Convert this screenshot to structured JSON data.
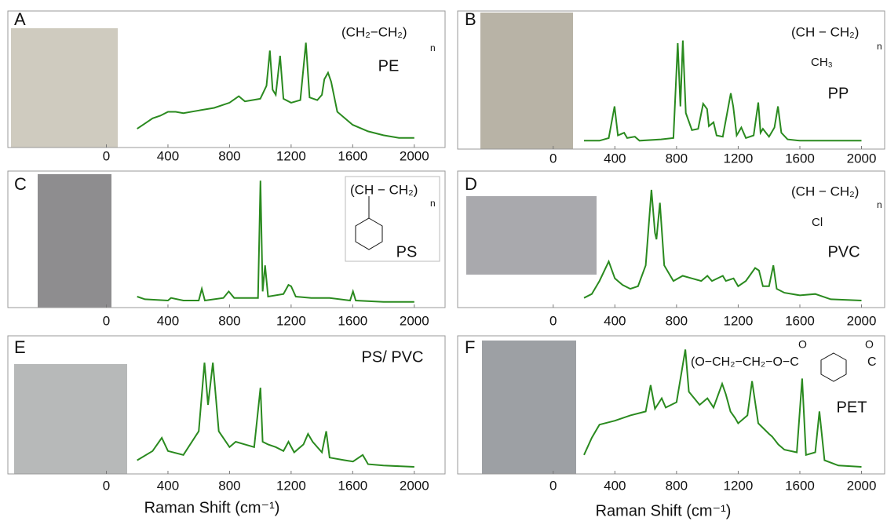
{
  "chart_data": [
    {
      "type": "line",
      "label": "A",
      "name": "PE",
      "formula": [
        "(CH₂−CH₂)",
        "n"
      ],
      "x": [
        200,
        250,
        300,
        350,
        400,
        450,
        500,
        600,
        700,
        800,
        860,
        900,
        1000,
        1040,
        1062,
        1080,
        1100,
        1128,
        1150,
        1200,
        1260,
        1296,
        1320,
        1370,
        1400,
        1416,
        1440,
        1460,
        1500,
        1600,
        1700,
        1800,
        1900,
        2000
      ],
      "series": [
        {
          "color": "#2a8a1f",
          "values": [
            12,
            16,
            20,
            22,
            25,
            25,
            24,
            26,
            28,
            32,
            37,
            33,
            35,
            45,
            72,
            42,
            38,
            68,
            35,
            32,
            34,
            78,
            36,
            34,
            38,
            50,
            55,
            48,
            25,
            15,
            10,
            7,
            5,
            5
          ]
        }
      ],
      "xlim": [
        -640,
        2200
      ],
      "ylim": [
        0,
        100
      ],
      "xticks": [
        0,
        400,
        800,
        1200,
        1600,
        2000
      ]
    },
    {
      "type": "line",
      "label": "B",
      "name": "PP",
      "formula": [
        "(CH − CH₂)",
        "n",
        "CH₃"
      ],
      "x": [
        200,
        300,
        360,
        398,
        420,
        460,
        480,
        530,
        560,
        700,
        780,
        808,
        825,
        841,
        860,
        900,
        940,
        973,
        998,
        1010,
        1040,
        1060,
        1100,
        1152,
        1168,
        1190,
        1220,
        1250,
        1300,
        1330,
        1345,
        1360,
        1400,
        1435,
        1458,
        1480,
        1520,
        1600,
        1800,
        2000
      ],
      "series": [
        {
          "color": "#2a8a1f",
          "values": [
            4,
            4,
            6,
            30,
            8,
            10,
            6,
            7,
            4,
            5,
            6,
            78,
            30,
            80,
            25,
            12,
            13,
            32,
            28,
            15,
            18,
            8,
            7,
            40,
            30,
            8,
            14,
            6,
            8,
            33,
            10,
            13,
            7,
            14,
            30,
            10,
            5,
            4,
            4,
            4
          ]
        }
      ],
      "xlim": [
        -620,
        2150
      ],
      "ylim": [
        0,
        100
      ],
      "xticks": [
        0,
        400,
        800,
        1200,
        1600,
        2000
      ]
    },
    {
      "type": "line",
      "label": "C",
      "name": "PS",
      "formula": [
        "(CH − CH₂)",
        "n"
      ],
      "x": [
        200,
        250,
        400,
        420,
        500,
        600,
        620,
        640,
        760,
        795,
        830,
        985,
        1001,
        1015,
        1031,
        1050,
        1150,
        1183,
        1200,
        1230,
        1330,
        1450,
        1583,
        1602,
        1620,
        1800,
        2000
      ],
      "series": [
        {
          "color": "#2a8a1f",
          "values": [
            6,
            4,
            3,
            5,
            3,
            3,
            12,
            3,
            5,
            10,
            5,
            5,
            95,
            10,
            30,
            6,
            8,
            15,
            14,
            6,
            5,
            5,
            3,
            10,
            3,
            2,
            2
          ]
        }
      ],
      "xlim": [
        -640,
        2200
      ],
      "ylim": [
        0,
        100
      ],
      "xticks": [
        0,
        400,
        800,
        1200,
        1600,
        2000
      ]
    },
    {
      "type": "line",
      "label": "D",
      "name": "PVC",
      "formula": [
        "(CH − CH₂)",
        "n",
        "Cl"
      ],
      "x": [
        200,
        250,
        300,
        360,
        400,
        450,
        500,
        550,
        600,
        637,
        660,
        670,
        692,
        720,
        780,
        840,
        900,
        960,
        1000,
        1030,
        1100,
        1120,
        1170,
        1200,
        1250,
        1310,
        1335,
        1360,
        1400,
        1428,
        1450,
        1500,
        1600,
        1700,
        1800,
        2000
      ],
      "series": [
        {
          "color": "#2a8a1f",
          "values": [
            5,
            8,
            18,
            33,
            20,
            15,
            12,
            14,
            30,
            88,
            55,
            50,
            78,
            30,
            18,
            22,
            20,
            18,
            22,
            18,
            22,
            18,
            20,
            14,
            18,
            28,
            26,
            14,
            14,
            30,
            12,
            9,
            7,
            8,
            4,
            3
          ]
        }
      ],
      "xlim": [
        -620,
        2150
      ],
      "ylim": [
        0,
        100
      ],
      "xticks": [
        0,
        400,
        800,
        1200,
        1600,
        2000
      ]
    },
    {
      "type": "line",
      "label": "E",
      "name": "PS/ PVC",
      "x_label": "Raman Shift (cm⁻¹)",
      "x": [
        200,
        300,
        360,
        400,
        500,
        600,
        637,
        660,
        692,
        730,
        800,
        840,
        900,
        960,
        1001,
        1015,
        1050,
        1100,
        1150,
        1183,
        1220,
        1280,
        1310,
        1340,
        1400,
        1428,
        1450,
        1550,
        1602,
        1665,
        1700,
        1800,
        2000
      ],
      "series": [
        {
          "color": "#2a8a1f",
          "values": [
            8,
            15,
            25,
            15,
            12,
            30,
            82,
            50,
            82,
            30,
            18,
            22,
            20,
            18,
            63,
            22,
            20,
            18,
            15,
            22,
            14,
            20,
            28,
            22,
            14,
            30,
            10,
            8,
            7,
            12,
            5,
            4,
            3
          ]
        }
      ],
      "xlim": [
        -640,
        2200
      ],
      "ylim": [
        0,
        100
      ],
      "xticks": [
        0,
        400,
        800,
        1200,
        1600,
        2000
      ]
    },
    {
      "type": "line",
      "label": "F",
      "name": "PET",
      "x_label": "Raman Shift (cm⁻¹)",
      "formula": [
        "(O−CH₂−CH₂−O−C",
        "C",
        "O",
        "O"
      ],
      "x": [
        200,
        250,
        300,
        400,
        500,
        600,
        632,
        660,
        704,
        730,
        800,
        857,
        880,
        950,
        1000,
        1040,
        1096,
        1120,
        1150,
        1180,
        1200,
        1260,
        1290,
        1330,
        1400,
        1420,
        1460,
        1500,
        1580,
        1615,
        1640,
        1700,
        1727,
        1760,
        1850,
        2000
      ],
      "series": [
        {
          "color": "#2a8a1f",
          "values": [
            12,
            25,
            35,
            38,
            42,
            45,
            65,
            47,
            55,
            48,
            52,
            92,
            60,
            50,
            55,
            48,
            66,
            58,
            45,
            40,
            36,
            42,
            68,
            36,
            28,
            26,
            20,
            16,
            14,
            70,
            12,
            14,
            45,
            8,
            4,
            3
          ]
        }
      ],
      "xlim": [
        -620,
        2150
      ],
      "ylim": [
        0,
        100
      ],
      "xticks": [
        0,
        400,
        800,
        1200,
        1600,
        2000
      ]
    }
  ]
}
